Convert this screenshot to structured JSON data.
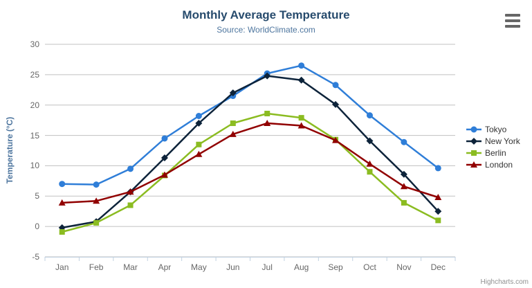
{
  "header": {
    "title": "Monthly Average Temperature",
    "subtitle": "Source: WorldClimate.com"
  },
  "credits": {
    "label": "Highcharts.com"
  },
  "menu": {
    "icon": "hamburger-icon"
  },
  "chart_data": {
    "type": "line",
    "title": "Monthly Average Temperature",
    "subtitle": "Source: WorldClimate.com",
    "categories": [
      "Jan",
      "Feb",
      "Mar",
      "Apr",
      "May",
      "Jun",
      "Jul",
      "Aug",
      "Sep",
      "Oct",
      "Nov",
      "Dec"
    ],
    "series": [
      {
        "name": "Tokyo",
        "color": "#2f7ed8",
        "marker": "circle",
        "values": [
          7.0,
          6.9,
          9.5,
          14.5,
          18.2,
          21.5,
          25.2,
          26.5,
          23.3,
          18.3,
          13.9,
          9.6
        ]
      },
      {
        "name": "New York",
        "color": "#0d233a",
        "marker": "diamond",
        "values": [
          -0.2,
          0.8,
          5.7,
          11.3,
          17.0,
          22.0,
          24.8,
          24.1,
          20.1,
          14.1,
          8.6,
          2.5
        ]
      },
      {
        "name": "Berlin",
        "color": "#8bbc21",
        "marker": "square",
        "values": [
          -0.9,
          0.6,
          3.5,
          8.4,
          13.5,
          17.0,
          18.6,
          17.9,
          14.3,
          9.0,
          3.9,
          1.0
        ]
      },
      {
        "name": "London",
        "color": "#910000",
        "marker": "triangle",
        "values": [
          3.9,
          4.2,
          5.7,
          8.5,
          11.9,
          15.2,
          17.0,
          16.6,
          14.2,
          10.3,
          6.6,
          4.8
        ]
      }
    ],
    "xlabel": "",
    "ylabel": "Temperature (°C)",
    "ylim": [
      -5,
      30
    ],
    "y_ticks": [
      -5,
      0,
      5,
      10,
      15,
      20,
      25,
      30
    ],
    "grid": true,
    "legend_position": "right"
  },
  "colors": {
    "gridline": "#c0c0c0",
    "axis_line": "#c0d0e0",
    "tick_label": "#666666",
    "title": "#274b6d",
    "subtitle": "#4d759e",
    "legend_text": "#333333",
    "credits": "#909090"
  }
}
